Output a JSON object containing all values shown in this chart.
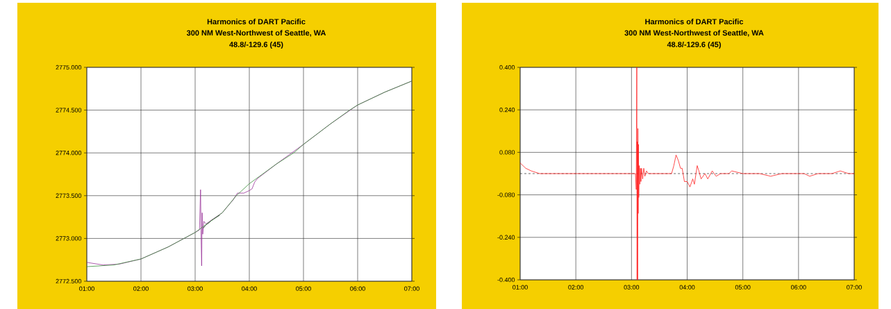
{
  "chart_data": [
    {
      "type": "line",
      "title": "Harmonics of DART Pacific",
      "subtitle": "300 NM West-Northwest of Seattle, WA",
      "annotations": [
        "48.8/-129.6 (45)"
      ],
      "xlim": [
        1,
        7
      ],
      "ylim": [
        2772.5,
        2775
      ],
      "xticks": [
        {
          "value": 1,
          "label": "01:00"
        },
        {
          "value": 2,
          "label": "02:00"
        },
        {
          "value": 3,
          "label": "03:00"
        },
        {
          "value": 4,
          "label": "04:00"
        },
        {
          "value": 5,
          "label": "05:00"
        },
        {
          "value": 6,
          "label": "06:00"
        },
        {
          "value": 7,
          "label": "07:00"
        }
      ],
      "yticks": [
        {
          "value": 2772.5,
          "label": "2772.500"
        },
        {
          "value": 2773,
          "label": "2773.000"
        },
        {
          "value": 2773.5,
          "label": "2773.500"
        },
        {
          "value": 2774,
          "label": "2774.000"
        },
        {
          "value": 2774.5,
          "label": "2774.500"
        },
        {
          "value": 2775,
          "label": "2775.000"
        }
      ],
      "grid": true,
      "series": [
        {
          "color": "#993399",
          "x": [
            1,
            1.3,
            1.6,
            2,
            2.5,
            3,
            3.08,
            3.1,
            3.11,
            3.12,
            3.13,
            3.14,
            3.16,
            3.2,
            3.5,
            3.7,
            3.78,
            3.9,
            4.0,
            4.05,
            4.1,
            4.15,
            4.5,
            5,
            5.5,
            6,
            6.5,
            7
          ],
          "values": [
            2772.72,
            2772.69,
            2772.7,
            2772.76,
            2772.9,
            2773.07,
            2773.1,
            2773.57,
            2773.0,
            2772.68,
            2773.3,
            2773.05,
            2773.2,
            2773.17,
            2773.3,
            2773.45,
            2773.53,
            2773.53,
            2773.56,
            2773.58,
            2773.66,
            2773.7,
            2773.87,
            2774.1,
            2774.34,
            2774.56,
            2774.71,
            2774.84
          ]
        },
        {
          "color": "#202020",
          "x": [
            3.15,
            3.2,
            3.25,
            3.3,
            3.35,
            3.4,
            3.45
          ],
          "values": [
            2773.12,
            2773.16,
            2773.18,
            2773.21,
            2773.23,
            2773.25,
            2773.27
          ]
        },
        {
          "color": "#3a8f3a",
          "x": [
            1,
            1.5,
            2,
            2.5,
            3,
            3.5,
            3.76,
            4,
            4.5,
            4.82,
            5,
            5.5,
            5.85,
            6,
            6.5,
            7
          ],
          "values": [
            2772.67,
            2772.69,
            2772.76,
            2772.9,
            2773.07,
            2773.3,
            2773.5,
            2773.64,
            2773.87,
            2774.0,
            2774.1,
            2774.34,
            2774.5,
            2774.56,
            2774.71,
            2774.84
          ]
        }
      ]
    },
    {
      "type": "line",
      "title": "Harmonics of DART Pacific",
      "subtitle": "300 NM West-Northwest of Seattle, WA",
      "annotations": [
        "48.8/-129.6 (45)"
      ],
      "xlim": [
        1,
        7
      ],
      "ylim": [
        -0.4,
        0.4
      ],
      "xticks": [
        {
          "value": 1,
          "label": "01:00"
        },
        {
          "value": 2,
          "label": "02:00"
        },
        {
          "value": 3,
          "label": "03:00"
        },
        {
          "value": 4,
          "label": "04:00"
        },
        {
          "value": 5,
          "label": "05:00"
        },
        {
          "value": 6,
          "label": "06:00"
        },
        {
          "value": 7,
          "label": "07:00"
        }
      ],
      "yticks": [
        {
          "value": -0.4,
          "label": "-0.400"
        },
        {
          "value": -0.24,
          "label": "-0.240"
        },
        {
          "value": -0.08,
          "label": "-0.080"
        },
        {
          "value": 0.08,
          "label": "0.080"
        },
        {
          "value": 0.24,
          "label": "0.240"
        },
        {
          "value": 0.4,
          "label": "0.400"
        }
      ],
      "grid": true,
      "ref_lines": [
        {
          "axis": "y",
          "value": 0,
          "color": "#000000",
          "line_style": "dashed"
        }
      ],
      "series": [
        {
          "color": "#ff2020",
          "x": [
            1.0,
            1.1,
            1.2,
            1.35,
            1.6,
            2.0,
            2.5,
            2.8,
            3.0,
            3.07,
            3.085,
            3.095,
            3.1,
            3.105,
            3.11,
            3.115,
            3.12,
            3.125,
            3.13,
            3.14,
            3.15,
            3.16,
            3.17,
            3.18,
            3.2,
            3.22,
            3.24,
            3.27,
            3.3,
            3.4,
            3.6,
            3.72,
            3.76,
            3.8,
            3.84,
            3.88,
            3.91,
            3.95,
            4.0,
            4.05,
            4.1,
            4.13,
            4.18,
            4.21,
            4.25,
            4.32,
            4.37,
            4.45,
            4.52,
            4.6,
            4.75,
            4.8,
            5.0,
            5.3,
            5.5,
            5.7,
            5.85,
            6.1,
            6.2,
            6.35,
            6.6,
            6.75,
            6.9,
            7.0
          ],
          "values": [
            0.04,
            0.02,
            0.01,
            0.0,
            0.0,
            0.0,
            0.0,
            0.0,
            0.0,
            0.0,
            -0.06,
            0.4,
            -0.4,
            0.12,
            -0.4,
            0.17,
            -0.15,
            0.11,
            -0.09,
            0.03,
            -0.04,
            0.02,
            -0.03,
            0.02,
            -0.02,
            0.02,
            -0.01,
            0.01,
            0.0,
            0.0,
            0.0,
            0.0,
            0.03,
            0.07,
            0.05,
            0.02,
            0.02,
            -0.03,
            -0.03,
            -0.05,
            -0.02,
            -0.04,
            0.03,
            0.01,
            -0.02,
            0.0,
            -0.02,
            0.01,
            -0.01,
            0.0,
            0.0,
            0.01,
            0.0,
            0.0,
            -0.01,
            0.0,
            0.0,
            0.0,
            -0.01,
            0.0,
            0.0,
            0.01,
            0.0,
            0.0
          ]
        }
      ]
    }
  ]
}
